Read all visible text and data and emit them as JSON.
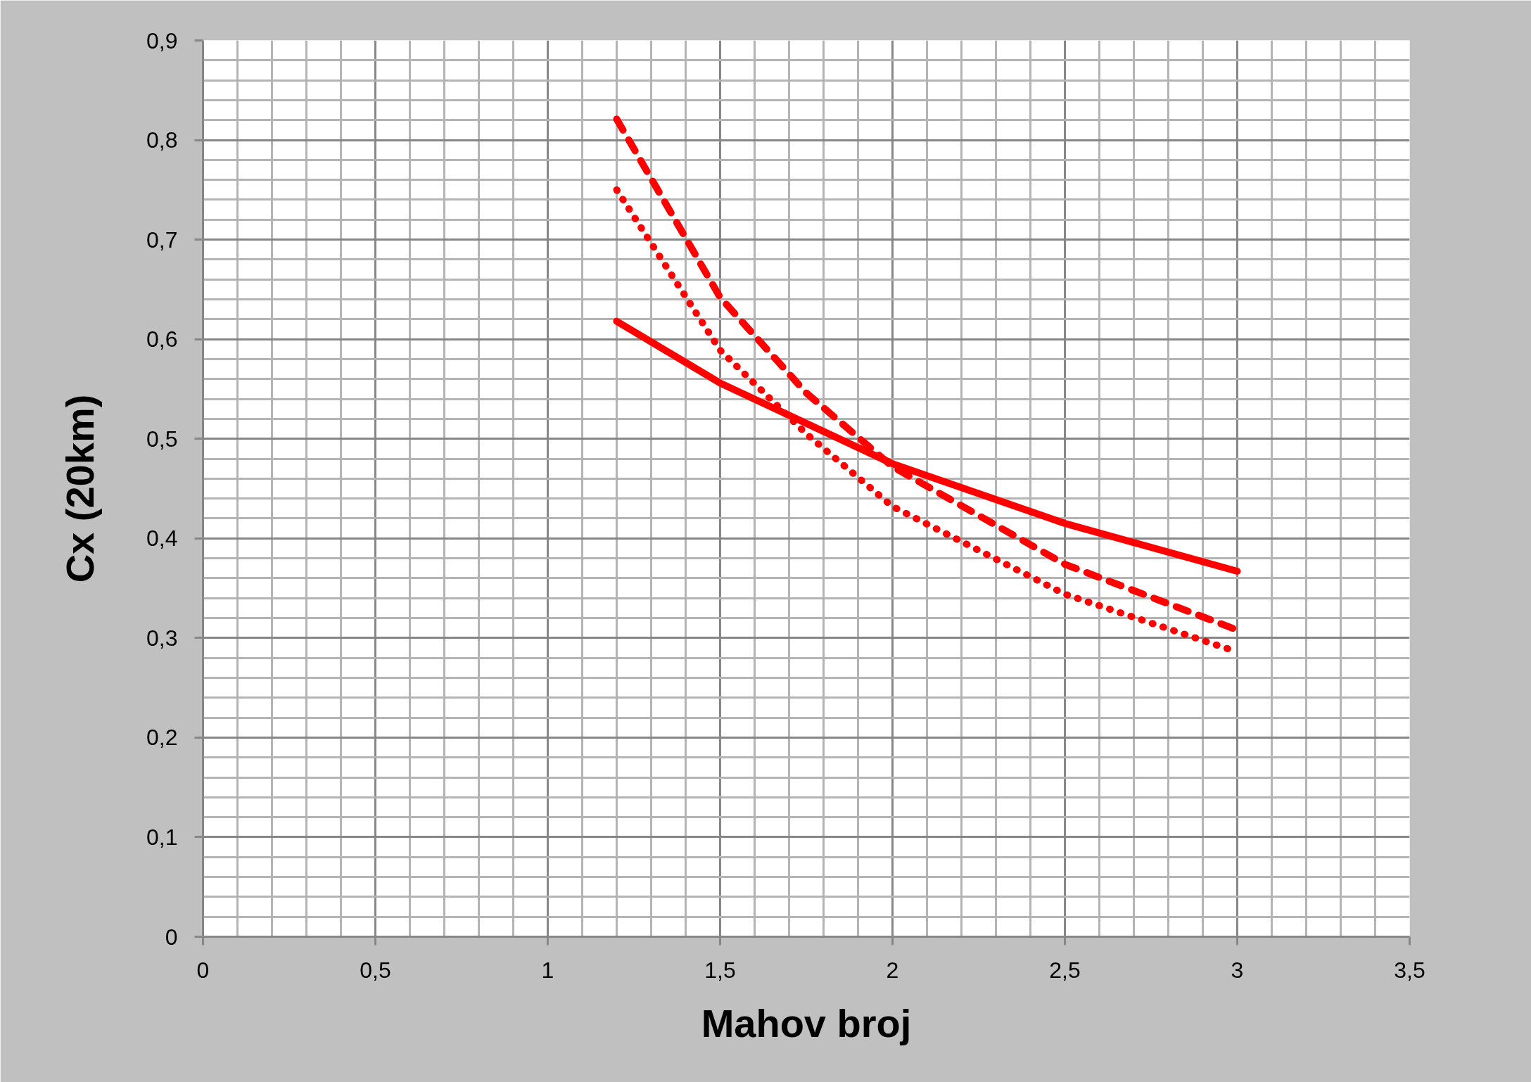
{
  "chart_data": {
    "type": "line",
    "xlabel": "Mahov broj",
    "ylabel": "Cx (20km)",
    "xlim": [
      0,
      3.5
    ],
    "ylim": [
      0,
      0.9
    ],
    "xticks": [
      0,
      {
        "value": 0.5,
        "label": "0,5"
      },
      1,
      {
        "value": 1.5,
        "label": "1,5"
      },
      2,
      {
        "value": 2.5,
        "label": "2,5"
      },
      3,
      {
        "value": 3.5,
        "label": "3,5"
      }
    ],
    "yticks": [
      0,
      {
        "value": 0.1,
        "label": "0,1"
      },
      {
        "value": 0.2,
        "label": "0,2"
      },
      {
        "value": 0.3,
        "label": "0,3"
      },
      {
        "value": 0.4,
        "label": "0,4"
      },
      {
        "value": 0.5,
        "label": "0,5"
      },
      {
        "value": 0.6,
        "label": "0,6"
      },
      {
        "value": 0.7,
        "label": "0,7"
      },
      {
        "value": 0.8,
        "label": "0,8"
      },
      {
        "value": 0.9,
        "label": "0,9"
      }
    ],
    "grid": true,
    "series": [
      {
        "color": "#ff0000",
        "line_style": "solid",
        "x": [
          1.2,
          1.5,
          2.0,
          2.5,
          3.0
        ],
        "values": [
          0.618,
          0.556,
          0.475,
          0.415,
          0.367
        ]
      },
      {
        "color": "#ff0000",
        "line_style": "dashed",
        "x": [
          1.2,
          1.5,
          1.75,
          2.0,
          2.5,
          3.0
        ],
        "values": [
          0.821,
          0.642,
          0.546,
          0.472,
          0.374,
          0.308
        ]
      },
      {
        "color": "#ff0000",
        "line_style": "dotted",
        "x": [
          1.2,
          1.5,
          1.75,
          2.0,
          2.5,
          3.0
        ],
        "values": [
          0.75,
          0.589,
          0.505,
          0.432,
          0.344,
          0.286
        ]
      }
    ]
  }
}
